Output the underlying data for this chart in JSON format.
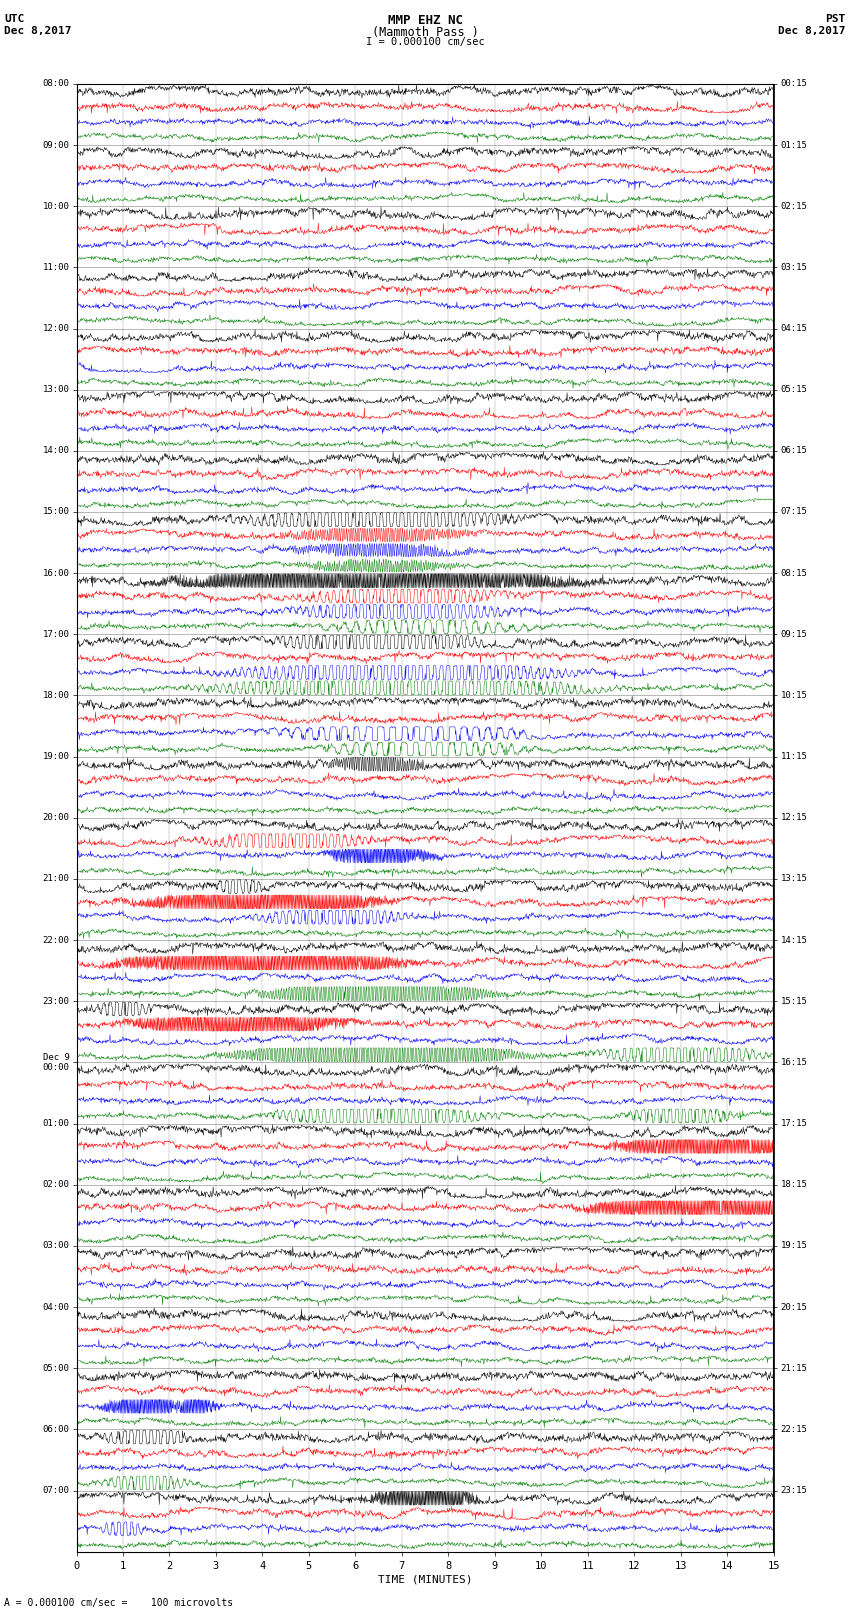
{
  "title_line1": "MMP EHZ NC",
  "title_line2": "(Mammoth Pass )",
  "title_scale": "I = 0.000100 cm/sec",
  "left_header_line1": "UTC",
  "left_header_line2": "Dec 8,2017",
  "right_header_line1": "PST",
  "right_header_line2": "Dec 8,2017",
  "footer": "= 0.000100 cm/sec =    100 microvolts",
  "xlabel": "TIME (MINUTES)",
  "utc_labels": [
    "08:00",
    "09:00",
    "10:00",
    "11:00",
    "12:00",
    "13:00",
    "14:00",
    "15:00",
    "16:00",
    "17:00",
    "18:00",
    "19:00",
    "20:00",
    "21:00",
    "22:00",
    "23:00",
    "Dec 9\n00:00",
    "01:00",
    "02:00",
    "03:00",
    "04:00",
    "05:00",
    "06:00",
    "07:00"
  ],
  "pst_labels": [
    "00:15",
    "01:15",
    "02:15",
    "03:15",
    "04:15",
    "05:15",
    "06:15",
    "07:15",
    "08:15",
    "09:15",
    "10:15",
    "11:15",
    "12:15",
    "13:15",
    "14:15",
    "15:15",
    "16:15",
    "17:15",
    "18:15",
    "19:15",
    "20:15",
    "21:15",
    "22:15",
    "23:15"
  ],
  "colors": [
    "black",
    "red",
    "blue",
    "green"
  ],
  "background": "#ffffff",
  "n_hours": 24,
  "traces_per_hour": 4,
  "minutes": 15,
  "seed": 42
}
